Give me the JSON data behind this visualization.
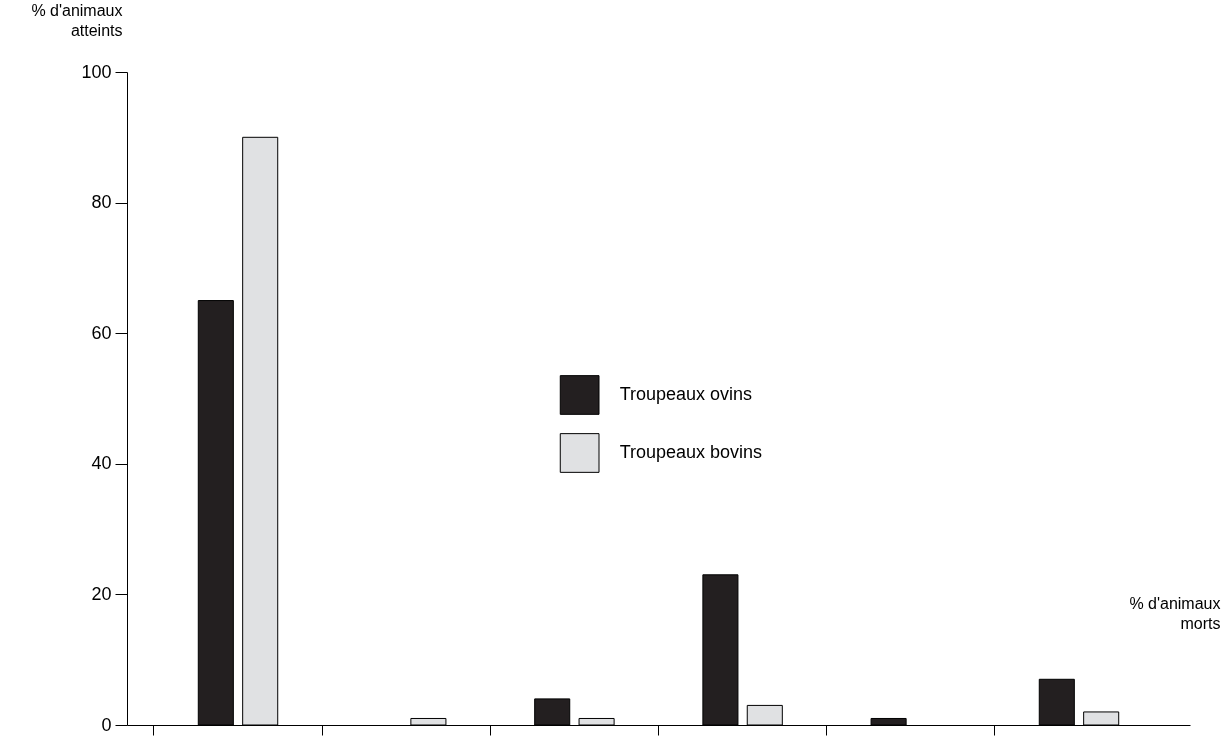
{
  "chart_data": {
    "type": "bar",
    "xlabel": "% d'animaux morts",
    "ylabel": "% d'animaux atteints",
    "categories": [
      null,
      null,
      null,
      null,
      null,
      null
    ],
    "series": [
      {
        "name": "Troupeaux ovins",
        "color": "#231f20",
        "values": [
          65,
          null,
          4,
          23,
          1,
          7
        ]
      },
      {
        "name": "Troupeaux bovins",
        "color": "#e0e1e3",
        "values": [
          90,
          1,
          1,
          3,
          null,
          2
        ]
      }
    ],
    "ylim": [
      0,
      100
    ],
    "yticks": [
      0,
      20,
      40,
      60,
      80,
      100
    ],
    "grid": false,
    "legend": "center",
    "tick_labels": "y"
  }
}
